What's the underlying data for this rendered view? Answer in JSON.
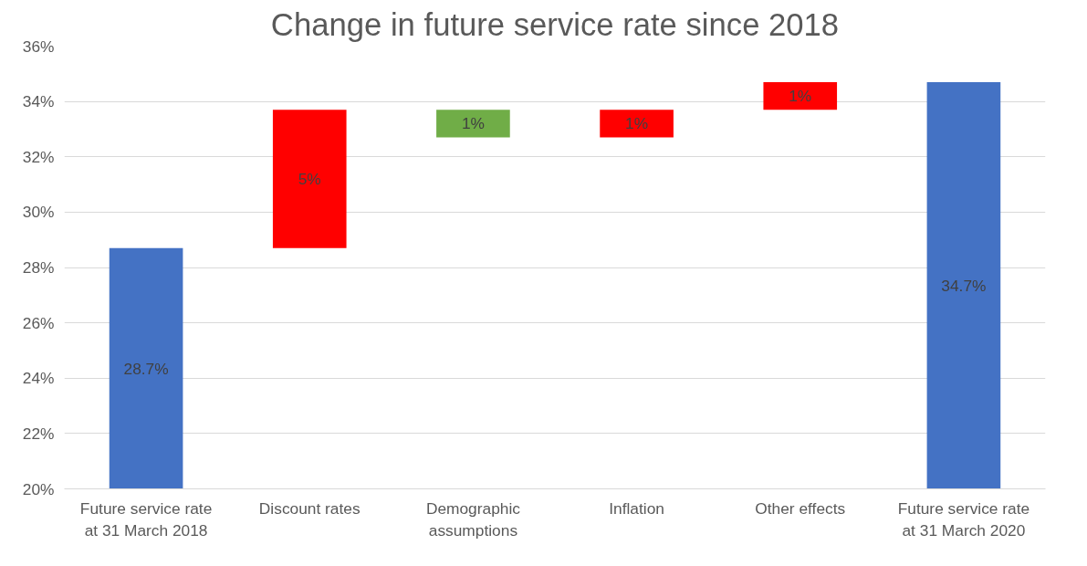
{
  "chart_data": {
    "type": "bar",
    "title": "Change in future service rate since 2018",
    "categories": [
      "Future service rate at 31 March 2018",
      "Discount rates",
      "Demographic assumptions",
      "Inflation",
      "Other effects",
      "Future service rate at 31 March 2020"
    ],
    "values": [
      8.7,
      5,
      1,
      1,
      1,
      14.7
    ],
    "base": [
      20,
      28.7,
      32.7,
      32.7,
      33.7,
      20
    ],
    "colors": [
      "#4472c4",
      "#ff0000",
      "#70ad47",
      "#ff0000",
      "#ff0000",
      "#4472c4"
    ],
    "value_labels": [
      "28.7%",
      "5%",
      "1%",
      "1%",
      "1%",
      "34.7%"
    ],
    "ylim": [
      20,
      36
    ],
    "yticks": [
      {
        "value": 20,
        "label": "20%"
      },
      {
        "value": 22,
        "label": "22%"
      },
      {
        "value": 24,
        "label": "24%"
      },
      {
        "value": 26,
        "label": "26%"
      },
      {
        "value": 28,
        "label": "28%"
      },
      {
        "value": 30,
        "label": "30%"
      },
      {
        "value": 32,
        "label": "32%"
      },
      {
        "value": 34,
        "label": "34%"
      },
      {
        "value": 36,
        "label": "36%"
      }
    ],
    "grid": "y"
  }
}
